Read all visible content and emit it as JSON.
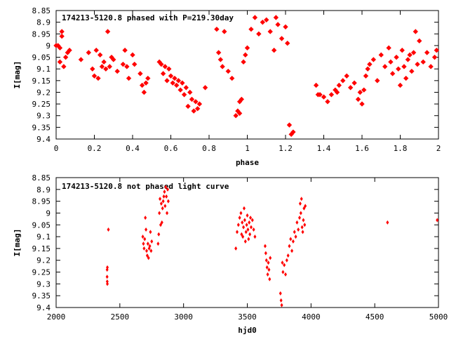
{
  "chart_data": [
    {
      "type": "scatter",
      "title": "174213-5120.8 phased with P=219.30day",
      "xlabel": "phase",
      "ylabel": "I[mag]",
      "xlim": [
        0,
        2
      ],
      "ylim": [
        8.85,
        9.4
      ],
      "y_inverted": true,
      "x_ticks": [
        "0",
        "0.2",
        "0.4",
        "0.6",
        "0.8",
        "1",
        "1.2",
        "1.4",
        "1.6",
        "1.8",
        "2"
      ],
      "y_ticks": [
        "8.85",
        "8.9",
        "8.95",
        "9",
        "9.05",
        "9.1",
        "9.15",
        "9.2",
        "9.25",
        "9.3",
        "9.35",
        "9.4"
      ],
      "series": [
        {
          "color": "#ff0000",
          "x": [
            0.0,
            0.01,
            0.02,
            0.02,
            0.03,
            0.03,
            0.04,
            0.05,
            0.06,
            0.07,
            0.13,
            0.17,
            0.19,
            0.2,
            0.21,
            0.22,
            0.23,
            0.24,
            0.25,
            0.26,
            0.27,
            0.28,
            0.29,
            0.3,
            0.32,
            0.35,
            0.36,
            0.37,
            0.38,
            0.4,
            0.41,
            0.44,
            0.45,
            0.46,
            0.47,
            0.48,
            0.54,
            0.55,
            0.56,
            0.57,
            0.58,
            0.59,
            0.6,
            0.61,
            0.62,
            0.63,
            0.64,
            0.65,
            0.66,
            0.67,
            0.68,
            0.69,
            0.7,
            0.71,
            0.72,
            0.73,
            0.74,
            0.75,
            0.78,
            0.84,
            0.85,
            0.86,
            0.87,
            0.88,
            0.9,
            0.92,
            0.94,
            0.95,
            0.96,
            0.96,
            0.97,
            0.98,
            0.99,
            1.0,
            1.02,
            1.04,
            1.06,
            1.08,
            1.1,
            1.12,
            1.14,
            1.15,
            1.16,
            1.18,
            1.2,
            1.21,
            1.22,
            1.23,
            1.24,
            1.36,
            1.37,
            1.38,
            1.4,
            1.42,
            1.44,
            1.46,
            1.47,
            1.48,
            1.5,
            1.52,
            1.54,
            1.56,
            1.58,
            1.59,
            1.6,
            1.61,
            1.62,
            1.63,
            1.64,
            1.66,
            1.68,
            1.7,
            1.72,
            1.74,
            1.75,
            1.76,
            1.78,
            1.79,
            1.8,
            1.81,
            1.82,
            1.83,
            1.84,
            1.85,
            1.86,
            1.87,
            1.88,
            1.89,
            1.9,
            1.92,
            1.94,
            1.96,
            1.98,
            1.99
          ],
          "y": [
            9.0,
            9.0,
            9.07,
            9.01,
            8.96,
            8.94,
            9.09,
            9.05,
            9.03,
            9.02,
            9.06,
            9.03,
            9.1,
            9.13,
            9.02,
            9.14,
            9.04,
            9.09,
            9.07,
            9.1,
            8.94,
            9.09,
            9.05,
            9.06,
            9.11,
            9.08,
            9.02,
            9.09,
            9.14,
            9.04,
            9.08,
            9.12,
            9.17,
            9.2,
            9.16,
            9.14,
            9.07,
            9.08,
            9.12,
            9.09,
            9.15,
            9.1,
            9.13,
            9.16,
            9.14,
            9.17,
            9.15,
            9.19,
            9.16,
            9.21,
            9.18,
            9.26,
            9.2,
            9.23,
            9.28,
            9.24,
            9.27,
            9.25,
            9.18,
            8.93,
            9.03,
            9.06,
            9.09,
            8.94,
            9.11,
            9.14,
            9.3,
            9.28,
            9.29,
            9.24,
            9.23,
            9.07,
            9.04,
            9.01,
            8.93,
            8.88,
            8.95,
            8.9,
            8.89,
            8.94,
            9.02,
            8.88,
            8.91,
            8.97,
            8.92,
            8.99,
            9.34,
            9.38,
            9.37,
            9.17,
            9.21,
            9.21,
            9.22,
            9.24,
            9.21,
            9.19,
            9.2,
            9.17,
            9.15,
            9.13,
            9.18,
            9.16,
            9.23,
            9.2,
            9.25,
            9.19,
            9.13,
            9.1,
            9.08,
            9.06,
            9.15,
            9.04,
            9.09,
            9.01,
            9.07,
            9.12,
            9.05,
            9.1,
            9.17,
            9.02,
            9.09,
            9.14,
            9.06,
            9.04,
            9.11,
            9.03,
            8.94,
            9.08,
            8.98,
            9.07,
            9.03,
            9.09,
            9.05,
            9.02
          ]
        }
      ]
    },
    {
      "type": "scatter",
      "title": "174213-5120.8 not phased light curve",
      "xlabel": "hjd0",
      "ylabel": "I[mag]",
      "xlim": [
        2000,
        5000
      ],
      "ylim": [
        8.85,
        9.4
      ],
      "y_inverted": true,
      "x_ticks": [
        "2000",
        "2500",
        "3000",
        "3500",
        "4000",
        "4500",
        "5000"
      ],
      "y_ticks": [
        "8.85",
        "8.9",
        "8.95",
        "9",
        "9.05",
        "9.1",
        "9.15",
        "9.2",
        "9.25",
        "9.3",
        "9.35",
        "9.4"
      ],
      "series": [
        {
          "color": "#ff0000",
          "x": [
            2400,
            2400,
            2401,
            2402,
            2402,
            2410,
            2680,
            2685,
            2690,
            2695,
            2700,
            2705,
            2710,
            2715,
            2720,
            2725,
            2730,
            2735,
            2740,
            2745,
            2750,
            2800,
            2805,
            2810,
            2815,
            2820,
            2825,
            2830,
            2835,
            2840,
            2845,
            2850,
            2855,
            2860,
            2865,
            2870,
            2875,
            2880,
            3410,
            3420,
            3430,
            3440,
            3450,
            3455,
            3460,
            3465,
            3470,
            3475,
            3480,
            3485,
            3490,
            3495,
            3500,
            3505,
            3510,
            3515,
            3520,
            3525,
            3530,
            3540,
            3550,
            3560,
            3640,
            3645,
            3650,
            3655,
            3660,
            3665,
            3670,
            3675,
            3680,
            3760,
            3765,
            3770,
            3775,
            3780,
            3790,
            3800,
            3810,
            3820,
            3830,
            3840,
            3850,
            3860,
            3870,
            3880,
            3890,
            3900,
            3910,
            3915,
            3920,
            3925,
            3930,
            3935,
            3940,
            3945,
            3950,
            3955,
            4600,
            4990
          ],
          "y": [
            9.24,
            9.27,
            9.29,
            9.3,
            9.23,
            9.07,
            9.1,
            9.13,
            9.15,
            9.11,
            9.02,
            9.07,
            9.16,
            9.18,
            9.13,
            9.19,
            9.15,
            9.14,
            9.08,
            9.16,
            9.12,
            9.13,
            9.09,
            9.0,
            8.94,
            9.05,
            8.96,
            9.04,
            8.98,
            8.95,
            8.93,
            8.91,
            8.97,
            8.89,
            8.93,
            9.0,
            8.9,
            8.95,
            9.15,
            9.08,
            9.05,
            9.02,
            9.0,
            9.09,
            9.04,
            9.1,
            9.06,
            8.98,
            9.03,
            9.12,
            9.08,
            9.05,
            9.01,
            9.07,
            9.11,
            9.04,
            9.09,
            9.02,
            9.06,
            9.03,
            9.07,
            9.1,
            9.14,
            9.17,
            9.2,
            9.23,
            9.26,
            9.21,
            9.24,
            9.28,
            9.19,
            9.34,
            9.37,
            9.39,
            9.21,
            9.25,
            9.22,
            9.26,
            9.2,
            9.18,
            9.14,
            9.11,
            9.16,
            9.12,
            9.08,
            9.1,
            9.04,
            9.07,
            9.02,
            8.96,
            9.0,
            8.94,
            9.06,
            9.08,
            9.03,
            8.98,
            9.05,
            8.97,
            9.04,
            9.03
          ]
        }
      ]
    }
  ]
}
